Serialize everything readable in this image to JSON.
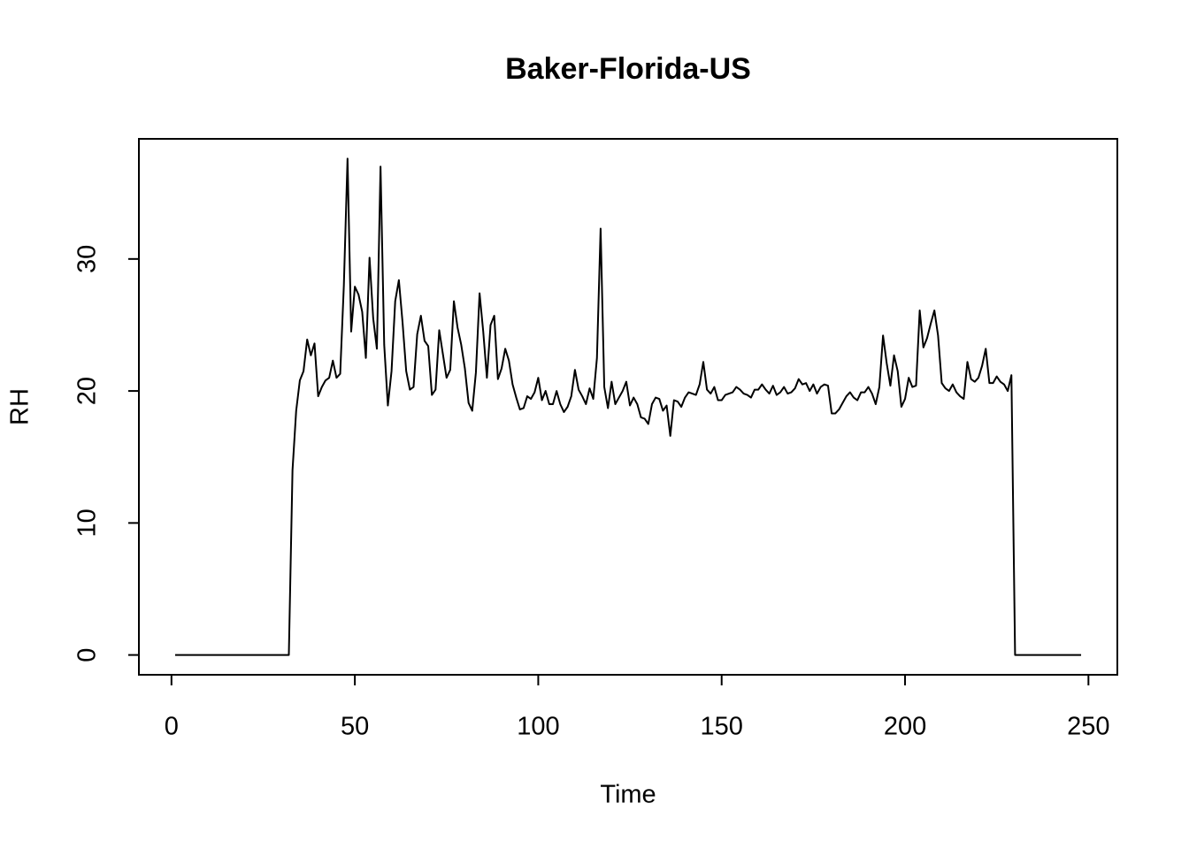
{
  "chart_data": {
    "type": "line",
    "title": "Baker-Florida-US",
    "xlabel": "Time",
    "ylabel": "RH",
    "x": [
      1,
      2,
      3,
      4,
      5,
      6,
      7,
      8,
      9,
      10,
      11,
      12,
      13,
      14,
      15,
      16,
      17,
      18,
      19,
      20,
      21,
      22,
      23,
      24,
      25,
      26,
      27,
      28,
      29,
      30,
      31,
      32,
      33,
      34,
      35,
      36,
      37,
      38,
      39,
      40,
      41,
      42,
      43,
      44,
      45,
      46,
      47,
      48,
      49,
      50,
      51,
      52,
      53,
      54,
      55,
      56,
      57,
      58,
      59,
      60,
      61,
      62,
      63,
      64,
      65,
      66,
      67,
      68,
      69,
      70,
      71,
      72,
      73,
      74,
      75,
      76,
      77,
      78,
      79,
      80,
      81,
      82,
      83,
      84,
      85,
      86,
      87,
      88,
      89,
      90,
      91,
      92,
      93,
      94,
      95,
      96,
      97,
      98,
      99,
      100,
      101,
      102,
      103,
      104,
      105,
      106,
      107,
      108,
      109,
      110,
      111,
      112,
      113,
      114,
      115,
      116,
      117,
      118,
      119,
      120,
      121,
      122,
      123,
      124,
      125,
      126,
      127,
      128,
      129,
      130,
      131,
      132,
      133,
      134,
      135,
      136,
      137,
      138,
      139,
      140,
      141,
      142,
      143,
      144,
      145,
      146,
      147,
      148,
      149,
      150,
      151,
      152,
      153,
      154,
      155,
      156,
      157,
      158,
      159,
      160,
      161,
      162,
      163,
      164,
      165,
      166,
      167,
      168,
      169,
      170,
      171,
      172,
      173,
      174,
      175,
      176,
      177,
      178,
      179,
      180,
      181,
      182,
      183,
      184,
      185,
      186,
      187,
      188,
      189,
      190,
      191,
      192,
      193,
      194,
      195,
      196,
      197,
      198,
      199,
      200,
      201,
      202,
      203,
      204,
      205,
      206,
      207,
      208,
      209,
      210,
      211,
      212,
      213,
      214,
      215,
      216,
      217,
      218,
      219,
      220,
      221,
      222,
      223,
      224,
      225,
      226,
      227,
      228,
      229,
      230,
      231,
      232,
      233,
      234,
      235,
      236,
      237,
      238,
      239,
      240,
      241,
      242,
      243,
      244,
      245,
      246,
      247,
      248
    ],
    "series": [
      {
        "name": "RH",
        "color": "#000000",
        "values": [
          0,
          0,
          0,
          0,
          0,
          0,
          0,
          0,
          0,
          0,
          0,
          0,
          0,
          0,
          0,
          0,
          0,
          0,
          0,
          0,
          0,
          0,
          0,
          0,
          0,
          0,
          0,
          0,
          0,
          0,
          0,
          0,
          14,
          18.5,
          20.8,
          21.5,
          23.9,
          22.7,
          23.6,
          19.6,
          20.3,
          20.8,
          21,
          22.3,
          21,
          21.3,
          28,
          37.6,
          24.5,
          27.9,
          27.3,
          26,
          22.5,
          30.1,
          25.5,
          23.2,
          37,
          23.5,
          18.9,
          21.5,
          26.8,
          28.4,
          25.2,
          21.5,
          20.1,
          20.3,
          24.3,
          25.7,
          23.8,
          23.4,
          19.7,
          20.1,
          24.6,
          22.8,
          21,
          21.6,
          26.8,
          24.8,
          23.5,
          21.7,
          19.1,
          18.5,
          21.4,
          27.4,
          24.5,
          21,
          25,
          25.7,
          20.9,
          21.7,
          23.2,
          22.3,
          20.5,
          19.5,
          18.6,
          18.7,
          19.6,
          19.4,
          19.9,
          21,
          19.3,
          20,
          19,
          19,
          20,
          19,
          18.4,
          18.8,
          19.6,
          21.6,
          20.1,
          19.6,
          19,
          20.2,
          19.4,
          22.5,
          32.3,
          20.3,
          18.7,
          20.7,
          19,
          19.5,
          20,
          20.7,
          18.9,
          19.5,
          19,
          18,
          17.9,
          17.5,
          19,
          19.5,
          19.4,
          18.5,
          18.9,
          16.6,
          19.3,
          19.2,
          18.8,
          19.5,
          19.9,
          19.8,
          19.7,
          20.5,
          22.2,
          20.1,
          19.8,
          20.3,
          19.3,
          19.3,
          19.7,
          19.8,
          19.9,
          20.3,
          20.1,
          19.8,
          19.7,
          19.5,
          20.1,
          20.1,
          20.5,
          20.1,
          19.8,
          20.4,
          19.7,
          19.9,
          20.3,
          19.8,
          19.9,
          20.2,
          20.9,
          20.5,
          20.6,
          20,
          20.5,
          19.8,
          20.3,
          20.5,
          20.4,
          18.3,
          18.3,
          18.6,
          19.1,
          19.6,
          19.9,
          19.5,
          19.3,
          19.9,
          19.9,
          20.3,
          19.8,
          19,
          20.3,
          24.2,
          22.1,
          20.4,
          22.7,
          21.5,
          18.8,
          19.4,
          21,
          20.3,
          20.4,
          26.1,
          23.3,
          24,
          25.1,
          26.1,
          24.2,
          20.6,
          20.2,
          20,
          20.5,
          19.9,
          19.6,
          19.4,
          22.2,
          20.9,
          20.7,
          21,
          21.9,
          23.2,
          20.6,
          20.6,
          21.1,
          20.7,
          20.5,
          20,
          21.2,
          0,
          0,
          0,
          0,
          0,
          0,
          0,
          0,
          0,
          0,
          0,
          0,
          0,
          0,
          0,
          0,
          0,
          0,
          0
        ]
      }
    ],
    "xlim": [
      -8.88,
      257.88
    ],
    "ylim": [
      -1.5,
      39.1
    ],
    "xticks": [
      0,
      50,
      100,
      150,
      200,
      250
    ],
    "yticks": [
      0,
      10,
      20,
      30
    ]
  }
}
